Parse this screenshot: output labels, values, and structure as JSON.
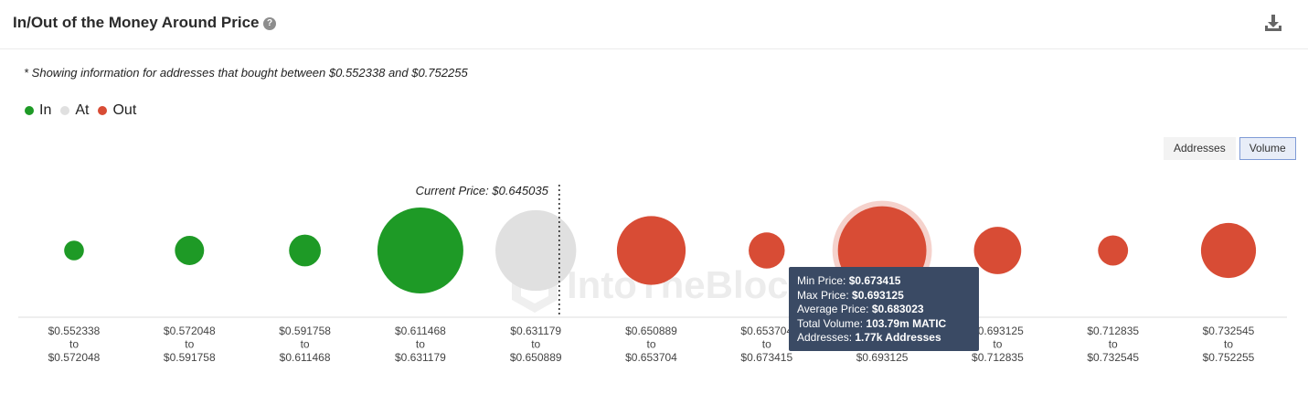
{
  "header": {
    "title": "In/Out of the Money Around Price",
    "help_icon": "?"
  },
  "note": "* Showing information for addresses that bought between $0.552338 and $0.752255",
  "legend": [
    {
      "label": "In",
      "color": "#1e9a26"
    },
    {
      "label": "At",
      "color": "#e0e0e0"
    },
    {
      "label": "Out",
      "color": "#d84c35"
    }
  ],
  "toggle": {
    "addresses_label": "Addresses",
    "volume_label": "Volume",
    "selected": "Volume"
  },
  "chart_data": {
    "type": "bubble",
    "metric": "Volume",
    "current_price_label": "Current Price: $0.645035",
    "current_price": 0.645035,
    "watermark": "IntoTheBlock",
    "colors": {
      "In": "#1e9a26",
      "At": "#e0e0e0",
      "Out": "#d84c35"
    },
    "buckets": [
      {
        "from": "$0.552338",
        "to": "$0.572048",
        "status": "In",
        "relative_volume": 0.23
      },
      {
        "from": "$0.572048",
        "to": "$0.591758",
        "status": "In",
        "relative_volume": 0.34
      },
      {
        "from": "$0.591758",
        "to": "$0.611468",
        "status": "In",
        "relative_volume": 0.37
      },
      {
        "from": "$0.611468",
        "to": "$0.631179",
        "status": "In",
        "relative_volume": 1.0
      },
      {
        "from": "$0.631179",
        "to": "$0.650889",
        "status": "At",
        "relative_volume": 0.94
      },
      {
        "from": "$0.650889",
        "to": "$0.653704",
        "status": "Out",
        "relative_volume": 0.8
      },
      {
        "from": "$0.653704",
        "to": "$0.673415",
        "status": "Out",
        "relative_volume": 0.42
      },
      {
        "from": "$0.673415",
        "to": "$0.693125",
        "status": "Out",
        "relative_volume": 1.03
      },
      {
        "from": "$0.693125",
        "to": "$0.712835",
        "status": "Out",
        "relative_volume": 0.55
      },
      {
        "from": "$0.712835",
        "to": "$0.732545",
        "status": "Out",
        "relative_volume": 0.35
      },
      {
        "from": "$0.732545",
        "to": "$0.752255",
        "status": "Out",
        "relative_volume": 0.64
      }
    ],
    "to_word": "to",
    "highlighted_index": 7,
    "tooltip": {
      "min_label": "Min Price:",
      "min_value": "$0.673415",
      "max_label": "Max Price:",
      "max_value": "$0.693125",
      "avg_label": "Average Price:",
      "avg_value": "$0.683023",
      "vol_label": "Total Volume:",
      "vol_value": "103.79m MATIC",
      "addr_label": "Addresses:",
      "addr_value": "1.77k Addresses"
    }
  }
}
